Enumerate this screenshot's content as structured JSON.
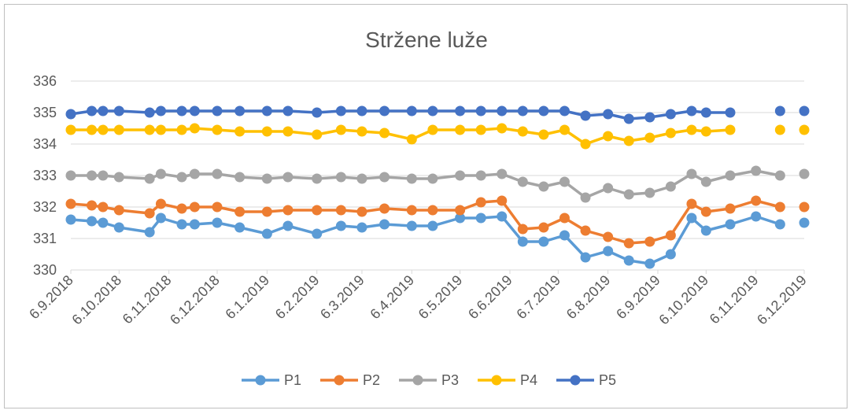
{
  "chart_data": {
    "type": "line",
    "title": "Stržene luže",
    "ylim": [
      330,
      336
    ],
    "yticks": [
      "330",
      "331",
      "332",
      "333",
      "334",
      "335",
      "336"
    ],
    "xlim": [
      "2018-09-06",
      "2019-12-06"
    ],
    "xtick_labels": [
      "6.9.2018",
      "6.10.2018",
      "6.11.2018",
      "6.12.2018",
      "6.1.2019",
      "6.2.2019",
      "6.3.2019",
      "6.4.2019",
      "6.5.2019",
      "6.6.2019",
      "6.7.2019",
      "6.8.2019",
      "6.9.2019",
      "6.10.2019",
      "6.11.2019",
      "6.12.2019"
    ],
    "xtick_dates": [
      "2018-09-06",
      "2018-10-06",
      "2018-11-06",
      "2018-12-06",
      "2019-01-06",
      "2019-02-06",
      "2019-03-06",
      "2019-04-06",
      "2019-05-06",
      "2019-06-06",
      "2019-07-06",
      "2019-08-06",
      "2019-09-06",
      "2019-10-06",
      "2019-11-06",
      "2019-12-06"
    ],
    "grid": true,
    "legend_position": "bottom",
    "x": [
      "2018-09-06",
      "2018-09-19",
      "2018-09-26",
      "2018-10-06",
      "2018-10-25",
      "2018-11-01",
      "2018-11-14",
      "2018-11-22",
      "2018-12-06",
      "2018-12-20",
      "2019-01-06",
      "2019-01-19",
      "2019-02-06",
      "2019-02-21",
      "2019-03-06",
      "2019-03-20",
      "2019-04-06",
      "2019-04-19",
      "2019-05-06",
      "2019-05-19",
      "2019-06-01",
      "2019-06-14",
      "2019-06-27",
      "2019-07-10",
      "2019-07-23",
      "2019-08-06",
      "2019-08-19",
      "2019-09-01",
      "2019-09-14",
      "2019-09-27",
      "2019-10-06",
      "2019-10-21",
      "2019-11-06",
      "2019-11-21",
      "2019-11-30",
      "2019-12-06"
    ],
    "series": [
      {
        "name": "P1",
        "color": "#5B9BD5",
        "values": [
          331.6,
          331.55,
          331.5,
          331.35,
          331.2,
          331.65,
          331.45,
          331.45,
          331.5,
          331.35,
          331.15,
          331.4,
          331.15,
          331.4,
          331.35,
          331.45,
          331.4,
          331.4,
          331.65,
          331.65,
          331.7,
          330.9,
          330.9,
          331.1,
          330.4,
          330.6,
          330.3,
          330.2,
          330.5,
          331.65,
          331.25,
          331.45,
          331.7,
          331.45,
          null,
          331.5
        ]
      },
      {
        "name": "P2",
        "color": "#ED7D31",
        "values": [
          332.1,
          332.05,
          332.0,
          331.9,
          331.8,
          332.1,
          331.95,
          332.0,
          332.0,
          331.85,
          331.85,
          331.9,
          331.9,
          331.9,
          331.85,
          331.95,
          331.9,
          331.9,
          331.9,
          332.15,
          332.2,
          331.3,
          331.35,
          331.65,
          331.25,
          331.05,
          330.85,
          330.9,
          331.1,
          332.1,
          331.85,
          331.95,
          332.2,
          332.0,
          null,
          332.0
        ]
      },
      {
        "name": "P3",
        "color": "#A5A5A5",
        "values": [
          333.0,
          333.0,
          333.0,
          332.95,
          332.9,
          333.05,
          332.95,
          333.05,
          333.05,
          332.95,
          332.9,
          332.95,
          332.9,
          332.95,
          332.9,
          332.95,
          332.9,
          332.9,
          333.0,
          333.0,
          333.05,
          332.8,
          332.65,
          332.8,
          332.3,
          332.6,
          332.4,
          332.45,
          332.65,
          333.05,
          332.8,
          333.0,
          333.15,
          333.0,
          null,
          333.05
        ]
      },
      {
        "name": "P4",
        "color": "#FFC000",
        "values": [
          334.45,
          334.45,
          334.45,
          334.45,
          334.45,
          334.45,
          334.45,
          334.5,
          334.45,
          334.4,
          334.4,
          334.4,
          334.3,
          334.45,
          334.4,
          334.35,
          334.15,
          334.45,
          334.45,
          334.45,
          334.5,
          334.4,
          334.3,
          334.45,
          334.0,
          334.25,
          334.1,
          334.2,
          334.35,
          334.45,
          334.4,
          334.45,
          null,
          334.45,
          null,
          334.45
        ]
      },
      {
        "name": "P5",
        "color": "#4472C4",
        "values": [
          334.95,
          335.05,
          335.05,
          335.05,
          335.0,
          335.05,
          335.05,
          335.05,
          335.05,
          335.05,
          335.05,
          335.05,
          335.0,
          335.05,
          335.05,
          335.05,
          335.05,
          335.05,
          335.05,
          335.05,
          335.05,
          335.05,
          335.05,
          335.05,
          334.9,
          334.95,
          334.8,
          334.85,
          334.95,
          335.05,
          335.0,
          335.0,
          null,
          335.05,
          null,
          335.05
        ]
      }
    ]
  }
}
